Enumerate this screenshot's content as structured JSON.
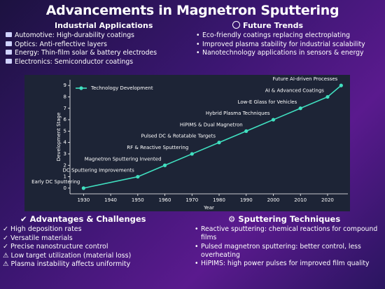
{
  "title": "Advancements in Magnetron Sputtering",
  "industrial": {
    "heading": "Industrial Applications",
    "items": [
      "Automotive: High-durability coatings",
      "Optics: Anti-reflective layers",
      "Energy: Thin-film solar & battery electrodes",
      "Electronics: Semiconductor coatings"
    ]
  },
  "trends": {
    "heading": "Future Trends",
    "items": [
      "Eco-friendly coatings replacing electroplating",
      "Improved plasma stability for industrial scalability",
      "Nanotechnology applications in sensors & energy"
    ]
  },
  "advantages": {
    "heading": "✔ Advantages & Challenges",
    "items": [
      "✓ High deposition rates",
      "✓ Versatile materials",
      "✓ Precise nanostructure control",
      "⚠ Low target utilization (material loss)",
      "⚠ Plasma instability affects uniformity"
    ]
  },
  "techniques": {
    "heading": "⚙ Sputtering Techniques",
    "items": [
      "Reactive sputtering: chemical reactions for compound films",
      "Pulsed magnetron sputtering: better control, less overheating",
      "HiPIMS: high power pulses for improved film quality"
    ]
  },
  "chart_data": {
    "type": "line",
    "x_label": "Year",
    "y_label": "Development Stage",
    "x": [
      1930,
      1950,
      1960,
      1970,
      1980,
      1990,
      2000,
      2010,
      2020,
      2025
    ],
    "series": [
      {
        "name": "Technology Development",
        "color": "#40e0c0",
        "values": [
          0,
          1,
          2,
          3,
          4,
          5,
          6,
          7,
          8,
          9
        ]
      }
    ],
    "point_labels": [
      "Early DC Sputtering",
      "DC Sputtering Improvements",
      "Magnetron Sputtering Invented",
      "RF & Reactive Sputtering",
      "Pulsed DC & Rotatable Targets",
      "HiPIMS & Dual Magnetron",
      "Hybrid Plasma Techniques",
      "Low-E Glass for Vehicles",
      "AI & Advanced Coatings",
      "Future AI-driven Processes"
    ],
    "xlim": [
      1925,
      2027.5
    ],
    "xticks": [
      1930,
      1940,
      1950,
      1960,
      1970,
      1980,
      1990,
      2000,
      2010,
      2020
    ],
    "ylim": [
      -0.5,
      9.5
    ],
    "yticks": [
      0,
      1,
      2,
      3,
      4,
      5,
      6,
      7,
      8,
      9
    ],
    "legend": "upper-left"
  }
}
